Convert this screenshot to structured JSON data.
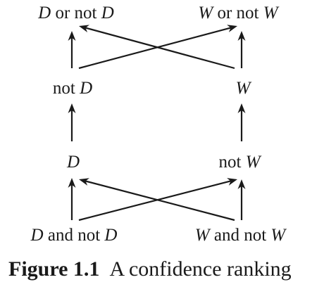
{
  "diagram": {
    "nodes": [
      {
        "id": "d-or-not-d",
        "parts": [
          {
            "t": "D",
            "i": true
          },
          {
            "t": " or not ",
            "i": false
          },
          {
            "t": "D",
            "i": true
          }
        ]
      },
      {
        "id": "w-or-not-w",
        "parts": [
          {
            "t": "W",
            "i": true
          },
          {
            "t": " or not ",
            "i": false
          },
          {
            "t": "W",
            "i": true
          }
        ]
      },
      {
        "id": "not-d",
        "parts": [
          {
            "t": "not ",
            "i": false
          },
          {
            "t": "D",
            "i": true
          }
        ]
      },
      {
        "id": "w",
        "parts": [
          {
            "t": "W",
            "i": true
          }
        ]
      },
      {
        "id": "d",
        "parts": [
          {
            "t": "D",
            "i": true
          }
        ]
      },
      {
        "id": "not-w",
        "parts": [
          {
            "t": "not ",
            "i": false
          },
          {
            "t": "W",
            "i": true
          }
        ]
      },
      {
        "id": "d-and-not-d",
        "parts": [
          {
            "t": "D",
            "i": true
          },
          {
            "t": " and not ",
            "i": false
          },
          {
            "t": "D",
            "i": true
          }
        ]
      },
      {
        "id": "w-and-not-w",
        "parts": [
          {
            "t": "W",
            "i": true
          },
          {
            "t": " and not ",
            "i": false
          },
          {
            "t": "W",
            "i": true
          }
        ]
      }
    ],
    "edges": [
      {
        "from": "not-d",
        "to": "d-or-not-d"
      },
      {
        "from": "not-d",
        "to": "w-or-not-w"
      },
      {
        "from": "w",
        "to": "w-or-not-w"
      },
      {
        "from": "w",
        "to": "d-or-not-d"
      },
      {
        "from": "d",
        "to": "not-d"
      },
      {
        "from": "not-w",
        "to": "w"
      },
      {
        "from": "d-and-not-d",
        "to": "d"
      },
      {
        "from": "d-and-not-d",
        "to": "not-w"
      },
      {
        "from": "w-and-not-w",
        "to": "not-w"
      },
      {
        "from": "w-and-not-w",
        "to": "d"
      }
    ]
  },
  "caption": {
    "label": "Figure 1.1",
    "title": "A confidence ranking"
  }
}
